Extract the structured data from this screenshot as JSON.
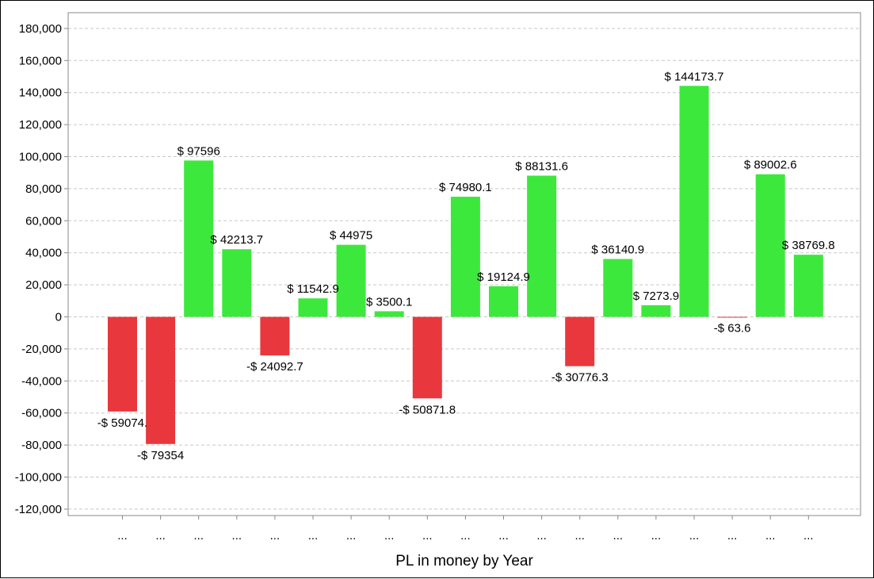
{
  "chart_data": {
    "type": "bar",
    "title": "",
    "xlabel": "PL in money by Year",
    "ylabel": "",
    "ylim": [
      -125000,
      190000
    ],
    "yticks": [
      180000,
      160000,
      140000,
      120000,
      100000,
      80000,
      60000,
      40000,
      20000,
      0,
      -20000,
      -40000,
      -60000,
      -80000,
      -100000,
      -120000
    ],
    "ytick_labels": [
      "180,000",
      "160,000",
      "140,000",
      "120,000",
      "100,000",
      "80,000",
      "60,000",
      "40,000",
      "20,000",
      "0",
      "-20,000",
      "-40,000",
      "-60,000",
      "-80,000",
      "-100,000",
      "-120,000"
    ],
    "grid": true,
    "legend": "none",
    "categories": [
      "...",
      "...",
      "...",
      "...",
      "...",
      "...",
      "...",
      "...",
      "...",
      "...",
      "...",
      "...",
      "...",
      "...",
      "...",
      "...",
      "...",
      "...",
      "..."
    ],
    "values": [
      -59074,
      -79354,
      97596,
      42213.7,
      -24092.7,
      11542.9,
      44975,
      3500.1,
      -50871.8,
      74980.1,
      19124.9,
      88131.6,
      -30776.3,
      36140.9,
      7273.9,
      144173.7,
      -63.6,
      89002.6,
      38769.8
    ],
    "data_labels": [
      "-$ 59074.",
      "-$ 79354",
      "$ 97596",
      "$ 42213.7",
      "-$ 24092.7",
      "$ 11542.9",
      "$ 44975",
      "$ 3500.1",
      "-$ 50871.8",
      "$ 74980.1",
      "$ 19124.9",
      "$ 88131.6",
      "-$ 30776.3",
      "$ 36140.9",
      "$ 7273.9",
      "$ 144173.7",
      "-$ 63.6",
      "$ 89002.6",
      "$ 38769.8"
    ],
    "colors": {
      "positive": "#3de83d",
      "negative": "#e8383d",
      "grid": "#c8c8c8",
      "axis": "#888888"
    }
  }
}
